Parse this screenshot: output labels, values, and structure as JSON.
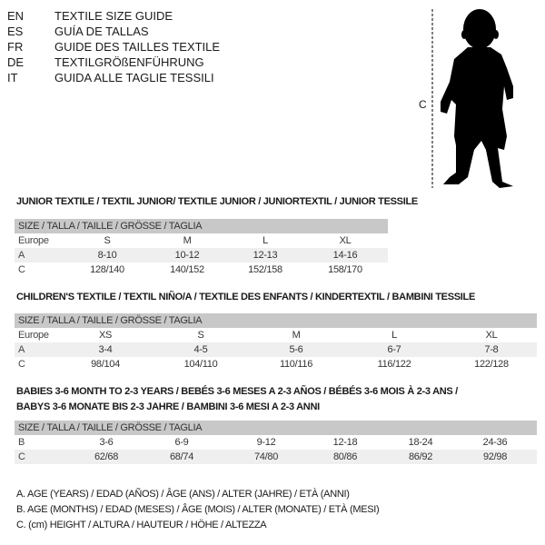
{
  "languages": [
    {
      "code": "EN",
      "text": "TEXTILE SIZE GUIDE"
    },
    {
      "code": "ES",
      "text": "GUÍA DE TALLAS"
    },
    {
      "code": "FR",
      "text": "GUIDE DES TAILLES TEXTILE"
    },
    {
      "code": "DE",
      "text": "TEXTILGRÖßENFÜHRUNG"
    },
    {
      "code": "IT",
      "text": "GUIDA ALLE TAGLIE TESSILI"
    }
  ],
  "figure": {
    "measure_label": "C"
  },
  "size_header": "SIZE / TALLA / TAILLE / GRÖSSE / TAGLIA",
  "junior": {
    "title": "JUNIOR TEXTILE / TEXTIL JUNIOR/ TEXTILE JUNIOR / JUNIORTEXTIL / JUNIOR TESSILE",
    "rows": [
      {
        "label": "Europe",
        "values": [
          "S",
          "M",
          "L",
          "XL"
        ]
      },
      {
        "label": "A",
        "values": [
          "8-10",
          "10-12",
          "12-13",
          "14-16"
        ]
      },
      {
        "label": "C",
        "values": [
          "128/140",
          "140/152",
          "152/158",
          "158/170"
        ]
      }
    ]
  },
  "children": {
    "title": "CHILDREN'S TEXTILE / TEXTIL NIÑO/A / TEXTILE DES ENFANTS / KINDERTEXTIL / BAMBINI TESSILE",
    "rows": [
      {
        "label": "Europe",
        "values": [
          "XS",
          "S",
          "M",
          "L",
          "XL"
        ]
      },
      {
        "label": "A",
        "values": [
          "3-4",
          "4-5",
          "5-6",
          "6-7",
          "7-8"
        ]
      },
      {
        "label": "C",
        "values": [
          "98/104",
          "104/110",
          "110/116",
          "116/122",
          "122/128"
        ]
      }
    ]
  },
  "babies": {
    "title_line1": "BABIES 3-6 MONTH TO 2-3 YEARS / BEBÉS 3-6 MESES A 2-3 AÑOS / BÉBÉS 3-6 MOIS À 2-3 ANS /",
    "title_line2": "BABYS 3-6 MONATE BIS 2-3 JAHRE / BAMBINI 3-6 MESI A 2-3 ANNI",
    "rows": [
      {
        "label": "B",
        "values": [
          "3-6",
          "6-9",
          "9-12",
          "12-18",
          "18-24",
          "24-36"
        ]
      },
      {
        "label": "C",
        "values": [
          "62/68",
          "68/74",
          "74/80",
          "80/86",
          "86/92",
          "92/98"
        ]
      }
    ]
  },
  "legend": [
    "A. AGE (YEARS) / EDAD (AÑOS) / ÂGE (ANS) / ALTER (JAHRE) / ETÀ (ANNI)",
    "B. AGE (MONTHS) / EDAD (MESES) / ÂGE (MOIS) / ALTER (MONATE) / ETÀ (MESI)",
    "C. (cm) HEIGHT / ALTURA / HAUTEUR / HÖHE / ALTEZZA"
  ]
}
